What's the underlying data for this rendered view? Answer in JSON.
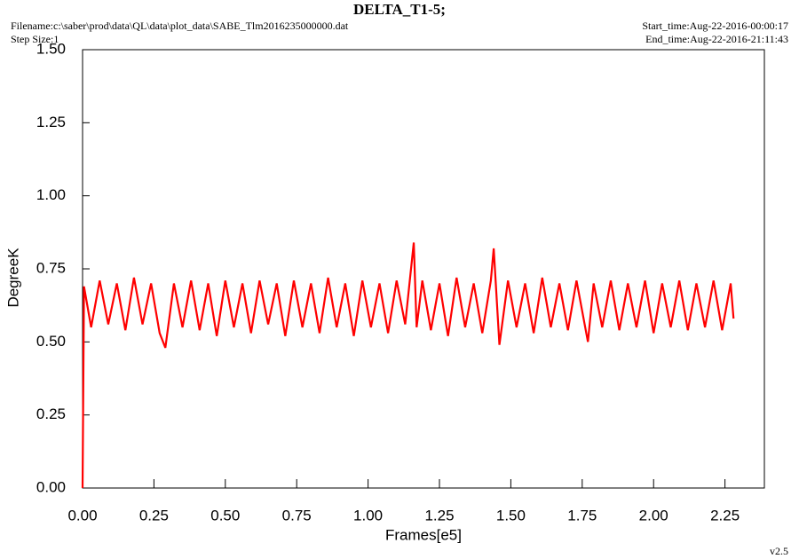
{
  "chart_data": {
    "type": "line",
    "title": "DELTA_T1-5;",
    "filename": "Filename:c:\\saber\\prod\\data\\QL\\data\\plot_data\\SABE_Tlm2016235000000.dat",
    "step_size": "Step Size:1",
    "start_time": "Start_time:Aug-22-2016-00:00:17",
    "end_time": "End_time:Aug-22-2016-21:11:43",
    "version": "v2.5",
    "x_label": "Frames[e5]",
    "y_label": "DegreeK",
    "xlim": [
      0,
      2.388
    ],
    "ylim": [
      0,
      1.5
    ],
    "xticks": [
      {
        "value": 0,
        "label": "0.00"
      },
      {
        "value": 0.25,
        "label": "0.25"
      },
      {
        "value": 0.5,
        "label": "0.50"
      },
      {
        "value": 0.75,
        "label": "0.75"
      },
      {
        "value": 1,
        "label": "1.00"
      },
      {
        "value": 1.25,
        "label": "1.25"
      },
      {
        "value": 1.5,
        "label": "1.50"
      },
      {
        "value": 1.75,
        "label": "1.75"
      },
      {
        "value": 2,
        "label": "2.00"
      },
      {
        "value": 2.25,
        "label": "2.25"
      }
    ],
    "yticks": [
      {
        "value": 0,
        "label": "0.00"
      },
      {
        "value": 0.25,
        "label": "0.25"
      },
      {
        "value": 0.5,
        "label": "0.50"
      },
      {
        "value": 0.75,
        "label": "0.75"
      },
      {
        "value": 1,
        "label": "1.00"
      },
      {
        "value": 1.25,
        "label": "1.25"
      },
      {
        "value": 1.5,
        "label": "1.50"
      }
    ],
    "x": [
      0,
      0.005,
      0.03,
      0.06,
      0.09,
      0.12,
      0.15,
      0.18,
      0.21,
      0.24,
      0.27,
      0.29,
      0.32,
      0.35,
      0.38,
      0.41,
      0.44,
      0.47,
      0.5,
      0.53,
      0.56,
      0.59,
      0.62,
      0.65,
      0.68,
      0.71,
      0.74,
      0.77,
      0.8,
      0.83,
      0.86,
      0.89,
      0.92,
      0.95,
      0.98,
      1.01,
      1.04,
      1.07,
      1.1,
      1.13,
      1.16,
      1.17,
      1.19,
      1.22,
      1.25,
      1.28,
      1.31,
      1.34,
      1.37,
      1.4,
      1.43,
      1.44,
      1.46,
      1.49,
      1.52,
      1.55,
      1.58,
      1.61,
      1.64,
      1.67,
      1.7,
      1.73,
      1.77,
      1.79,
      1.82,
      1.85,
      1.88,
      1.91,
      1.94,
      1.97,
      2.0,
      2.03,
      2.06,
      2.09,
      2.12,
      2.15,
      2.18,
      2.21,
      2.24,
      2.27,
      2.28
    ],
    "series": [
      {
        "color": "#ff0000",
        "values": [
          0.0,
          0.69,
          0.55,
          0.71,
          0.56,
          0.7,
          0.54,
          0.72,
          0.56,
          0.7,
          0.53,
          0.48,
          0.7,
          0.55,
          0.71,
          0.54,
          0.7,
          0.52,
          0.71,
          0.55,
          0.7,
          0.53,
          0.71,
          0.56,
          0.7,
          0.52,
          0.71,
          0.55,
          0.7,
          0.53,
          0.72,
          0.55,
          0.7,
          0.52,
          0.71,
          0.55,
          0.7,
          0.53,
          0.71,
          0.56,
          0.84,
          0.55,
          0.71,
          0.54,
          0.7,
          0.52,
          0.72,
          0.55,
          0.7,
          0.53,
          0.71,
          0.82,
          0.49,
          0.71,
          0.55,
          0.7,
          0.53,
          0.72,
          0.55,
          0.7,
          0.54,
          0.71,
          0.5,
          0.7,
          0.55,
          0.71,
          0.54,
          0.7,
          0.55,
          0.71,
          0.53,
          0.7,
          0.55,
          0.71,
          0.54,
          0.7,
          0.55,
          0.71,
          0.54,
          0.7,
          0.58
        ]
      }
    ]
  }
}
